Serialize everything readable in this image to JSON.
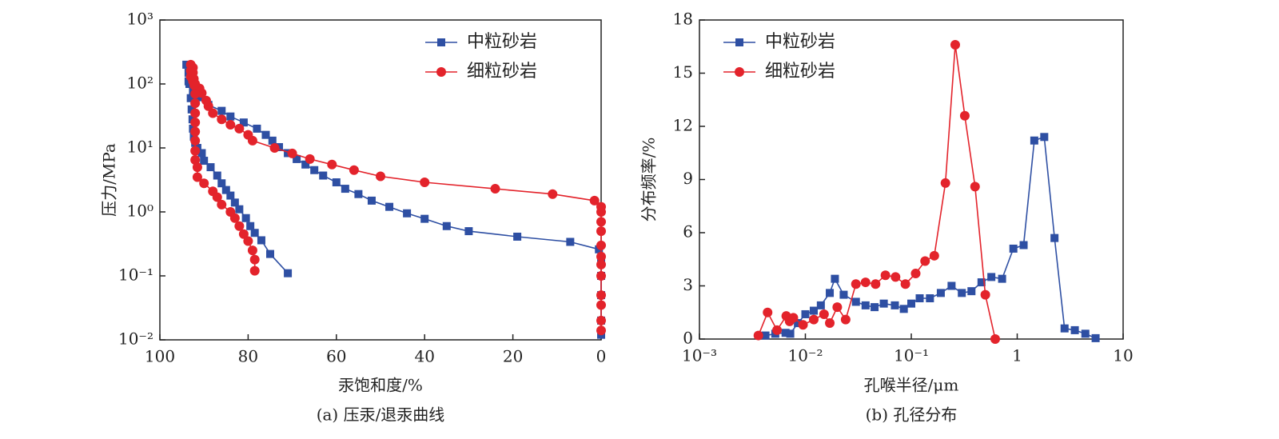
{
  "chart_data": [
    {
      "type": "line",
      "caption": "(a) 压汞/退汞曲线",
      "xlabel": "汞饱和度/%",
      "ylabel": "压力/MPa",
      "xlim": [
        100,
        0
      ],
      "xticks": [
        100,
        80,
        60,
        40,
        20,
        0
      ],
      "ylim": [
        0.01,
        1000
      ],
      "yscale": "log",
      "yticks": [
        {
          "value": 0.01,
          "label": "10⁻²"
        },
        {
          "value": 0.1,
          "label": "10⁻¹"
        },
        {
          "value": 1,
          "label": "10⁰"
        },
        {
          "value": 10,
          "label": "10¹"
        },
        {
          "value": 100,
          "label": "10²"
        },
        {
          "value": 1000,
          "label": "10³"
        }
      ],
      "legend": "upper right",
      "series": [
        {
          "name": "中粒砂岩",
          "color": "#2e4fa3",
          "marker": "square",
          "x": [
            0,
            0,
            0,
            0,
            0,
            0.5,
            7,
            19,
            30,
            35,
            40,
            44,
            48,
            52,
            55,
            58,
            60,
            63,
            65,
            67,
            69,
            71,
            73,
            74.5,
            76,
            78,
            81,
            84,
            86,
            89,
            91,
            92.5,
            93.5,
            94,
            93.5,
            93.3,
            93,
            92.8,
            92.6,
            92.5,
            92.3,
            92,
            91.5,
            90.5,
            90,
            88.5,
            87,
            86,
            85,
            84,
            83,
            82,
            80.5,
            79.5,
            78.5,
            77,
            75,
            71
          ],
          "values": [
            0.012,
            0.02,
            0.05,
            0.1,
            0.18,
            0.26,
            0.34,
            0.41,
            0.5,
            0.6,
            0.78,
            0.95,
            1.2,
            1.5,
            1.9,
            2.3,
            2.9,
            3.7,
            4.5,
            5.5,
            6.7,
            8.3,
            10.3,
            13,
            16,
            20,
            25,
            31,
            38,
            47,
            62,
            76,
            110,
            200,
            150,
            100,
            60,
            40,
            28,
            20,
            15,
            12,
            10,
            8.3,
            6.3,
            5,
            3.7,
            2.8,
            2.2,
            1.8,
            1.4,
            1.1,
            0.8,
            0.6,
            0.47,
            0.36,
            0.22,
            0.11
          ]
        },
        {
          "name": "细粒砂岩",
          "color": "#e3232b",
          "marker": "circle",
          "x": [
            0,
            0,
            0,
            0,
            0,
            0,
            0,
            0,
            0,
            0,
            0,
            0,
            1.5,
            11,
            24,
            40,
            50,
            56,
            61,
            66,
            70,
            74,
            79,
            80,
            82,
            84,
            86,
            88,
            89,
            89.5,
            90.5,
            91,
            92,
            92.5,
            93,
            93,
            93,
            92.5,
            92.5,
            92.3,
            92.2,
            92,
            92,
            92,
            92,
            92,
            92,
            92,
            92,
            91.5,
            91.5,
            90,
            88,
            87,
            86,
            84,
            83,
            82,
            81,
            80,
            79,
            78.5,
            78.5
          ],
          "values": [
            0.014,
            0.02,
            0.035,
            0.05,
            0.1,
            0.15,
            0.2,
            0.3,
            0.5,
            0.7,
            1,
            1.2,
            1.5,
            1.9,
            2.3,
            2.9,
            3.6,
            4.5,
            5.5,
            6.7,
            8.2,
            10,
            13,
            16,
            20,
            23,
            28,
            35,
            45,
            55,
            72,
            85,
            100,
            110,
            130,
            160,
            200,
            180,
            150,
            120,
            95,
            70,
            50,
            35,
            25,
            18,
            13,
            9,
            6.5,
            5,
            3.5,
            2.8,
            2.1,
            1.7,
            1.3,
            1,
            0.8,
            0.6,
            0.45,
            0.35,
            0.25,
            0.18,
            0.12
          ]
        }
      ]
    },
    {
      "type": "line",
      "caption": "(b) 孔径分布",
      "xlabel": "孔喉半径/μm",
      "ylabel": "分布频率/%",
      "xlim": [
        0.001,
        10
      ],
      "xscale": "log",
      "xticks": [
        {
          "value": 0.001,
          "label": "10⁻³"
        },
        {
          "value": 0.01,
          "label": "10⁻²"
        },
        {
          "value": 0.1,
          "label": "10⁻¹"
        },
        1,
        10
      ],
      "ylim": [
        0,
        18
      ],
      "yticks": [
        0,
        3,
        6,
        9,
        12,
        15,
        18
      ],
      "legend": "upper left",
      "series": [
        {
          "name": "中粒砂岩",
          "color": "#2e4fa3",
          "marker": "square",
          "x": [
            0.0042,
            0.0052,
            0.0065,
            0.0072,
            0.0085,
            0.01,
            0.012,
            0.014,
            0.017,
            0.019,
            0.023,
            0.03,
            0.037,
            0.045,
            0.055,
            0.07,
            0.085,
            0.1,
            0.12,
            0.15,
            0.19,
            0.24,
            0.3,
            0.37,
            0.46,
            0.57,
            0.72,
            0.92,
            1.15,
            1.45,
            1.8,
            2.25,
            2.8,
            3.5,
            4.4,
            5.5
          ],
          "values": [
            0.2,
            0.3,
            0.35,
            0.3,
            0.9,
            1.4,
            1.6,
            1.9,
            2.6,
            3.4,
            2.5,
            2.1,
            1.9,
            1.8,
            2.0,
            1.9,
            1.7,
            2.0,
            2.3,
            2.3,
            2.6,
            3.0,
            2.6,
            2.7,
            3.2,
            3.5,
            3.4,
            5.1,
            5.3,
            11.2,
            11.4,
            5.7,
            0.6,
            0.5,
            0.3,
            0.05
          ]
        },
        {
          "name": "细粒砂岩",
          "color": "#e3232b",
          "marker": "circle",
          "x": [
            0.0036,
            0.0044,
            0.0054,
            0.0066,
            0.0071,
            0.0077,
            0.0095,
            0.012,
            0.015,
            0.017,
            0.02,
            0.024,
            0.03,
            0.037,
            0.046,
            0.057,
            0.071,
            0.088,
            0.11,
            0.135,
            0.165,
            0.21,
            0.26,
            0.32,
            0.4,
            0.5,
            0.62
          ],
          "values": [
            0.2,
            1.5,
            0.5,
            1.3,
            1.0,
            1.2,
            0.8,
            1.1,
            1.4,
            0.9,
            1.8,
            1.1,
            3.1,
            3.2,
            3.1,
            3.6,
            3.5,
            3.1,
            3.7,
            4.4,
            4.7,
            8.8,
            16.6,
            12.6,
            8.6,
            2.5,
            0
          ]
        }
      ]
    }
  ]
}
